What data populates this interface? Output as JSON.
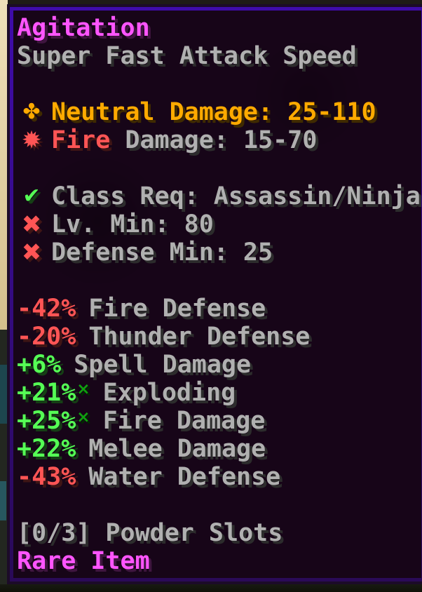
{
  "palette": {
    "magenta": "#FF55FF",
    "gray": "#B0B0B0",
    "gold": "#FFAA00",
    "red": "#FF5555",
    "green": "#55FF55",
    "dark_green": "#0FA00F",
    "border_purple_top": "#3F0CAA",
    "border_purple_bottom": "#2A0A58",
    "tooltip_background": "#170518"
  },
  "tooltip": {
    "title": "Agitation",
    "attack_speed": "Super Fast Attack Speed",
    "damage": [
      {
        "icon": "neutral-damage-icon",
        "glyph": "✤",
        "text": "Neutral Damage: 25-110"
      },
      {
        "icon": "fire-damage-icon",
        "glyph": "✹",
        "prefix": "Fire",
        "text": " Damage: 15-70"
      }
    ],
    "requirements": [
      {
        "icon": "check-icon",
        "glyph": "✔",
        "met": "true",
        "text": "Class Req: Assassin/Ninja"
      },
      {
        "icon": "cross-icon",
        "glyph": "✖",
        "met": "false",
        "text": "Lv. Min: 80"
      },
      {
        "icon": "cross-icon",
        "glyph": "✖",
        "met": "false",
        "text": "Defense Min: 25"
      }
    ],
    "identifications": [
      {
        "value": "-42%",
        "trend": "negative",
        "star": "",
        "label": "Fire Defense"
      },
      {
        "value": "-20%",
        "trend": "negative",
        "star": "",
        "label": "Thunder Defense"
      },
      {
        "value": "+6%",
        "trend": "positive",
        "star": "",
        "label": "Spell Damage"
      },
      {
        "value": "+21%",
        "trend": "positive",
        "star": "×",
        "label": "Exploding"
      },
      {
        "value": "+25%",
        "trend": "positive",
        "star": "×",
        "label": "Fire Damage"
      },
      {
        "value": "+22%",
        "trend": "positive",
        "star": "",
        "label": "Melee Damage"
      },
      {
        "value": "-43%",
        "trend": "negative",
        "star": "",
        "label": "Water Defense"
      }
    ],
    "powder_slots": "[0/3] Powder Slots",
    "rarity": "Rare Item"
  }
}
